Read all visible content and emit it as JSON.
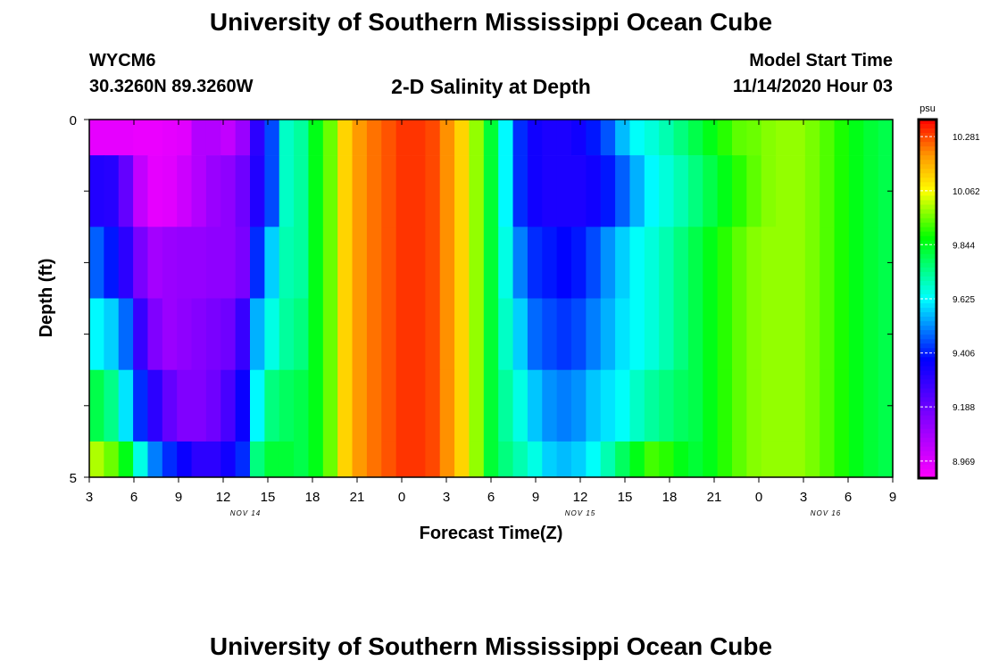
{
  "header": {
    "title": "University of Southern Mississippi Ocean Cube",
    "station_id": "WYCM6",
    "station_coords": "30.3260N 89.3260W",
    "subtitle": "2-D Salinity at Depth",
    "start_label": "Model Start Time",
    "start_value": "11/14/2020 Hour 03"
  },
  "footer": {
    "title": "University of Southern Mississippi Ocean Cube"
  },
  "chart_data": {
    "type": "heatmap",
    "title": "2-D Salinity at Depth",
    "xlabel": "Forecast Time(Z)",
    "ylabel": "Depth (ft)",
    "x_hours": [
      0,
      3,
      6,
      9,
      12,
      15,
      18,
      21,
      24,
      27,
      30,
      33,
      36,
      39,
      42,
      45,
      48,
      51,
      54
    ],
    "x_tick_labels": [
      "3",
      "6",
      "9",
      "12",
      "15",
      "18",
      "21",
      "0",
      "3",
      "6",
      "9",
      "12",
      "15",
      "18",
      "21",
      "0",
      "3",
      "6",
      "9"
    ],
    "date_labels": [
      {
        "text": "NOV 14",
        "hour": 10.5
      },
      {
        "text": "NOV 15",
        "hour": 33
      },
      {
        "text": "NOV 16",
        "hour": 49.5
      }
    ],
    "xlim": [
      0,
      54
    ],
    "y_tick_labels": [
      {
        "value": 0,
        "label": "0"
      },
      {
        "value": 5,
        "label": "5"
      }
    ],
    "ylim": [
      0,
      5
    ],
    "depth_levels": [
      0,
      1,
      2,
      3,
      4,
      5
    ],
    "row_tops": [
      0,
      0.5,
      1.5,
      2.5,
      3.5,
      4.5
    ],
    "row_bottoms": [
      0.5,
      1.5,
      2.5,
      3.5,
      4.5,
      5
    ],
    "colorbar": {
      "unit": "psu",
      "min": 8.9,
      "max": 10.35,
      "tick_values": [
        10.281,
        10.062,
        9.844,
        9.625,
        9.406,
        9.188,
        8.969
      ],
      "tick_labels": [
        "10.281",
        "10.062",
        "9.844",
        "9.625",
        "9.406",
        "9.188",
        "8.969"
      ]
    },
    "salinity_psu": [
      [
        8.95,
        8.95,
        8.95,
        8.94,
        8.94,
        8.95,
        8.96,
        9.05,
        9.05,
        9.02,
        9.1,
        9.3,
        9.45,
        9.68,
        9.72,
        9.85,
        9.95,
        10.12,
        10.2,
        10.24,
        10.27,
        10.3,
        10.3,
        10.28,
        10.21,
        10.12,
        9.98,
        9.82,
        9.62,
        9.42,
        9.35,
        9.33,
        9.33,
        9.35,
        9.4,
        9.46,
        9.56,
        9.63,
        9.66,
        9.7,
        9.75,
        9.8,
        9.85,
        9.9,
        9.94,
        9.95,
        9.97,
        9.98,
        9.98,
        9.96,
        9.93,
        9.89,
        9.85,
        9.82,
        9.8
      ],
      [
        9.32,
        9.31,
        9.2,
        9.02,
        8.95,
        8.96,
        9.0,
        9.05,
        9.1,
        9.12,
        9.18,
        9.32,
        9.45,
        9.68,
        9.72,
        9.85,
        9.95,
        10.12,
        10.2,
        10.24,
        10.27,
        10.3,
        10.3,
        10.28,
        10.21,
        10.12,
        9.98,
        9.82,
        9.62,
        9.42,
        9.35,
        9.33,
        9.33,
        9.33,
        9.35,
        9.4,
        9.47,
        9.55,
        9.62,
        9.66,
        9.7,
        9.75,
        9.8,
        9.85,
        9.9,
        9.94,
        9.97,
        9.98,
        9.98,
        9.96,
        9.93,
        9.89,
        9.85,
        9.82,
        9.8
      ],
      [
        9.47,
        9.4,
        9.3,
        9.16,
        9.08,
        9.1,
        9.11,
        9.11,
        9.12,
        9.12,
        9.16,
        9.42,
        9.58,
        9.7,
        9.72,
        9.85,
        9.95,
        10.12,
        10.2,
        10.24,
        10.27,
        10.3,
        10.3,
        10.28,
        10.21,
        10.12,
        9.98,
        9.82,
        9.65,
        9.5,
        9.42,
        9.4,
        9.38,
        9.4,
        9.45,
        9.52,
        9.58,
        9.63,
        9.66,
        9.7,
        9.75,
        9.8,
        9.85,
        9.9,
        9.94,
        9.97,
        9.98,
        9.98,
        9.98,
        9.96,
        9.93,
        9.89,
        9.85,
        9.82,
        9.8
      ],
      [
        9.62,
        9.58,
        9.48,
        9.28,
        9.15,
        9.1,
        9.12,
        9.14,
        9.16,
        9.18,
        9.28,
        9.55,
        9.65,
        9.72,
        9.75,
        9.85,
        9.95,
        10.12,
        10.2,
        10.24,
        10.27,
        10.3,
        10.3,
        10.28,
        10.21,
        10.12,
        9.98,
        9.82,
        9.68,
        9.58,
        9.48,
        9.45,
        9.43,
        9.45,
        9.5,
        9.55,
        9.6,
        9.63,
        9.66,
        9.7,
        9.75,
        9.8,
        9.85,
        9.9,
        9.94,
        9.97,
        9.98,
        9.98,
        9.98,
        9.96,
        9.93,
        9.89,
        9.85,
        9.82,
        9.8
      ],
      [
        9.8,
        9.74,
        9.6,
        9.42,
        9.3,
        9.2,
        9.15,
        9.15,
        9.18,
        9.25,
        9.36,
        9.62,
        9.75,
        9.78,
        9.8,
        9.85,
        9.95,
        10.12,
        10.2,
        10.24,
        10.27,
        10.3,
        10.3,
        10.28,
        10.21,
        10.12,
        9.98,
        9.82,
        9.72,
        9.65,
        9.57,
        9.52,
        9.5,
        9.52,
        9.57,
        9.6,
        9.63,
        9.68,
        9.72,
        9.75,
        9.78,
        9.8,
        9.85,
        9.9,
        9.94,
        9.97,
        9.98,
        9.98,
        9.98,
        9.96,
        9.93,
        9.89,
        9.85,
        9.82,
        9.8
      ],
      [
        10.0,
        9.95,
        9.85,
        9.65,
        9.5,
        9.42,
        9.36,
        9.3,
        9.3,
        9.35,
        9.42,
        9.75,
        9.82,
        9.82,
        9.8,
        9.85,
        9.95,
        10.12,
        10.2,
        10.24,
        10.27,
        10.3,
        10.3,
        10.28,
        10.21,
        10.12,
        9.98,
        9.82,
        9.75,
        9.7,
        9.65,
        9.58,
        9.56,
        9.58,
        9.63,
        9.7,
        9.78,
        9.85,
        9.92,
        9.9,
        9.85,
        9.82,
        9.85,
        9.9,
        9.94,
        9.97,
        9.98,
        9.98,
        9.98,
        9.96,
        9.93,
        9.89,
        9.85,
        9.82,
        9.8
      ]
    ]
  }
}
